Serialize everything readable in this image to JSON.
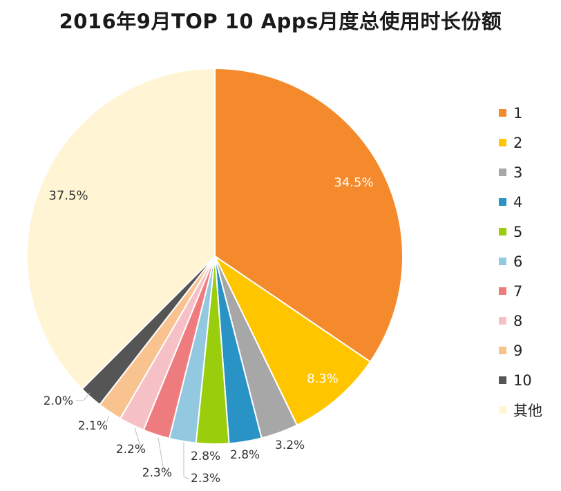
{
  "chart_data": {
    "type": "pie",
    "title": "2016年9月TOP 10 Apps月度总使用时长份额",
    "categories": [
      "1",
      "2",
      "3",
      "4",
      "5",
      "6",
      "7",
      "8",
      "9",
      "10",
      "其他"
    ],
    "values": [
      34.5,
      8.3,
      3.2,
      2.8,
      2.8,
      2.3,
      2.3,
      2.2,
      2.1,
      2.0,
      37.5
    ],
    "labels": [
      "34.5%",
      "8.3%",
      "3.2%",
      "2.8%",
      "2.8%",
      "2.3%",
      "2.3%",
      "2.2%",
      "2.1%",
      "2.0%",
      "37.5%"
    ],
    "colors": [
      "#F58A2C",
      "#FFC600",
      "#A7A7A7",
      "#2A93C6",
      "#9ACD0B",
      "#92C9E0",
      "#EE7C7E",
      "#F6C1C6",
      "#F8C38F",
      "#555555",
      "#FFF4D3"
    ],
    "legend_position": "right",
    "start_angle_deg": 0,
    "direction": "clockwise"
  }
}
